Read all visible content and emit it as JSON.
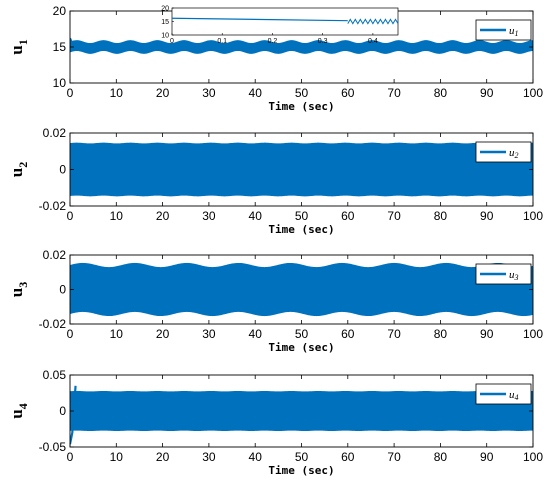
{
  "figure": {
    "accent_color": "#0072BD"
  },
  "chart_data": [
    {
      "type": "line",
      "name": "u1-plot",
      "xlabel": "Time (sec)",
      "ylabel": "u",
      "ylabel_sub": "1",
      "xlim": [
        0,
        100
      ],
      "ylim": [
        10,
        20
      ],
      "xticks": [
        0,
        10,
        20,
        30,
        40,
        50,
        60,
        70,
        80,
        90,
        100
      ],
      "yticks": [
        10,
        15,
        20
      ],
      "ytick_labels": [
        "10",
        "15",
        "20"
      ],
      "legend": "u",
      "legend_sub": "1",
      "legend_position": "top-right",
      "series": [
        {
          "center": 15.0,
          "half_width": 0.75,
          "wave_amplitude": 0.2,
          "wave_period": 5.8,
          "x_start": 0,
          "x_end": 100
        }
      ],
      "initial_transient": [
        [
          0,
          16.2
        ],
        [
          0.4,
          15.6
        ]
      ],
      "inset": {
        "xlim": [
          0,
          0.45
        ],
        "ylim": [
          10,
          20
        ],
        "xticks": [
          0,
          0.1,
          0.2,
          0.3,
          0.4
        ],
        "xtick_labels": [
          "0",
          "0.1",
          "0.2",
          "0.3",
          "0.4"
        ],
        "yticks": [
          10,
          15,
          20
        ],
        "ytick_labels": [
          "10",
          "15",
          "20"
        ],
        "line": [
          [
            0,
            16.2
          ],
          [
            0.35,
            15.3
          ]
        ],
        "oscillation": {
          "x_start": 0.35,
          "x_end": 0.45,
          "center": 15.0,
          "amplitude": 0.8
        }
      }
    },
    {
      "type": "line",
      "name": "u2-plot",
      "xlabel": "Time (sec)",
      "ylabel": "u",
      "ylabel_sub": "2",
      "xlim": [
        0,
        100
      ],
      "ylim": [
        -0.02,
        0.02
      ],
      "xticks": [
        0,
        10,
        20,
        30,
        40,
        50,
        60,
        70,
        80,
        90,
        100
      ],
      "yticks": [
        -0.02,
        0,
        0.02
      ],
      "ytick_labels": [
        "-0.02",
        "0",
        "0.02"
      ],
      "legend": "u",
      "legend_sub": "2",
      "legend_position": "top-right",
      "series": [
        {
          "center": 0,
          "half_width": 0.0145,
          "wave_amplitude": 0.0002,
          "wave_period": 5.8,
          "x_start": 0,
          "x_end": 100
        }
      ]
    },
    {
      "type": "line",
      "name": "u3-plot",
      "xlabel": "Time (sec)",
      "ylabel": "u",
      "ylabel_sub": "3",
      "xlim": [
        0,
        100
      ],
      "ylim": [
        -0.02,
        0.02
      ],
      "xticks": [
        0,
        10,
        20,
        30,
        40,
        50,
        60,
        70,
        80,
        90,
        100
      ],
      "yticks": [
        -0.02,
        0,
        0.02
      ],
      "ytick_labels": [
        "-0.02",
        "0",
        "0.02"
      ],
      "legend": "u",
      "legend_sub": "3",
      "legend_position": "top-right",
      "series": [
        {
          "center": 0,
          "half_width": 0.0142,
          "wave_amplitude": 0.0012,
          "wave_period": 11.2,
          "x_start": 0,
          "x_end": 100
        }
      ]
    },
    {
      "type": "line",
      "name": "u4-plot",
      "xlabel": "Time (sec)",
      "ylabel": "u",
      "ylabel_sub": "4",
      "xlim": [
        0,
        100
      ],
      "ylim": [
        -0.05,
        0.05
      ],
      "xticks": [
        0,
        10,
        20,
        30,
        40,
        50,
        60,
        70,
        80,
        90,
        100
      ],
      "yticks": [
        -0.05,
        0,
        0.05
      ],
      "ytick_labels": [
        "-0.05",
        "0",
        "0.05"
      ],
      "legend": "u",
      "legend_sub": "4",
      "legend_position": "top-right",
      "series": [
        {
          "center": 0,
          "half_width": 0.0275,
          "wave_amplitude": 0.0003,
          "wave_period": 5.8,
          "x_start": 0,
          "x_end": 100
        }
      ],
      "initial_transient": [
        [
          0,
          -0.046
        ],
        [
          0.5,
          -0.03
        ],
        [
          1.2,
          0.035
        ]
      ]
    }
  ]
}
